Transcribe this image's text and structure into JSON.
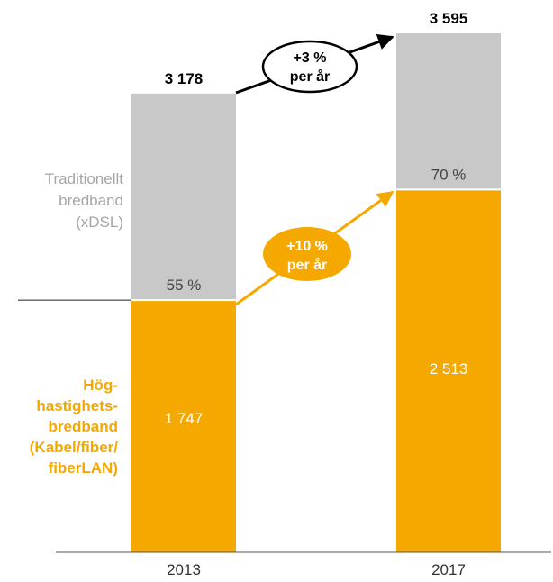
{
  "chart_data": {
    "type": "bar",
    "stacked": true,
    "categories": [
      "2013",
      "2017"
    ],
    "series": [
      {
        "name": "Höghastighetsbredband (Kabel/fiber/fiberLAN)",
        "values": [
          1747,
          2513
        ],
        "value_labels": [
          "1 747",
          "2 513"
        ],
        "color": "#f5a800"
      },
      {
        "name": "Traditionellt bredband (xDSL)",
        "values": [
          1431,
          1082
        ],
        "value_labels": [
          "55 %",
          "70 %"
        ],
        "color": "#c8c8c8"
      }
    ],
    "totals": [
      3178,
      3595
    ],
    "total_labels": [
      "3 178",
      "3 595"
    ],
    "ylim": [
      0,
      3595
    ],
    "grid": false,
    "legend": "inline-left",
    "xlabel": "",
    "ylabel": "",
    "annotations": {
      "total_growth": [
        "+3 %",
        "per år"
      ],
      "high_speed_growth": [
        "+10 %",
        "per år"
      ]
    },
    "series_labels": {
      "traditional": [
        "Traditionellt",
        "bredband",
        "(xDSL)"
      ],
      "highspeed": [
        "Hög-",
        "hastighets-",
        "bredband",
        "(Kabel/fiber/",
        "fiberLAN)"
      ]
    }
  },
  "colors": {
    "orange": "#f5a800",
    "gray": "#c8c8c8",
    "gray_text": "#a6a6a6",
    "axis": "#555555"
  }
}
